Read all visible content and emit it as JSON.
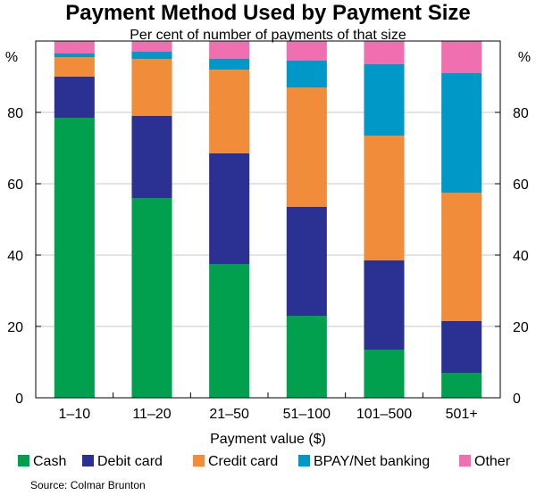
{
  "chart_data": {
    "type": "bar",
    "stacked": true,
    "title": "Payment Method Used by Payment Size",
    "subtitle": "Per cent of number of payments of that size",
    "xlabel": "Payment value ($)",
    "ylabel": "%",
    "ylim": [
      0,
      100
    ],
    "yticks": [
      0,
      20,
      40,
      60,
      80
    ],
    "categories": [
      "1–10",
      "11–20",
      "21–50",
      "51–100",
      "101–500",
      "501+"
    ],
    "series": [
      {
        "name": "Cash",
        "color": "#00a04f",
        "values": [
          78.5,
          56,
          37.5,
          23,
          13.5,
          7
        ]
      },
      {
        "name": "Debit card",
        "color": "#2b3192",
        "values": [
          11.5,
          23,
          31,
          30.5,
          25,
          14.5
        ]
      },
      {
        "name": "Credit card",
        "color": "#f08c3a",
        "values": [
          5.5,
          16,
          23.5,
          33.5,
          35,
          36
        ]
      },
      {
        "name": "BPAY/Net banking",
        "color": "#0098c6",
        "values": [
          1,
          2,
          3,
          7.5,
          20,
          33.5
        ]
      },
      {
        "name": "Other",
        "color": "#ef6fb0",
        "values": [
          3.5,
          3,
          5,
          5.5,
          6.5,
          9
        ]
      }
    ],
    "grid": true,
    "legend": "bottom"
  },
  "source": "Source: Colmar Brunton"
}
